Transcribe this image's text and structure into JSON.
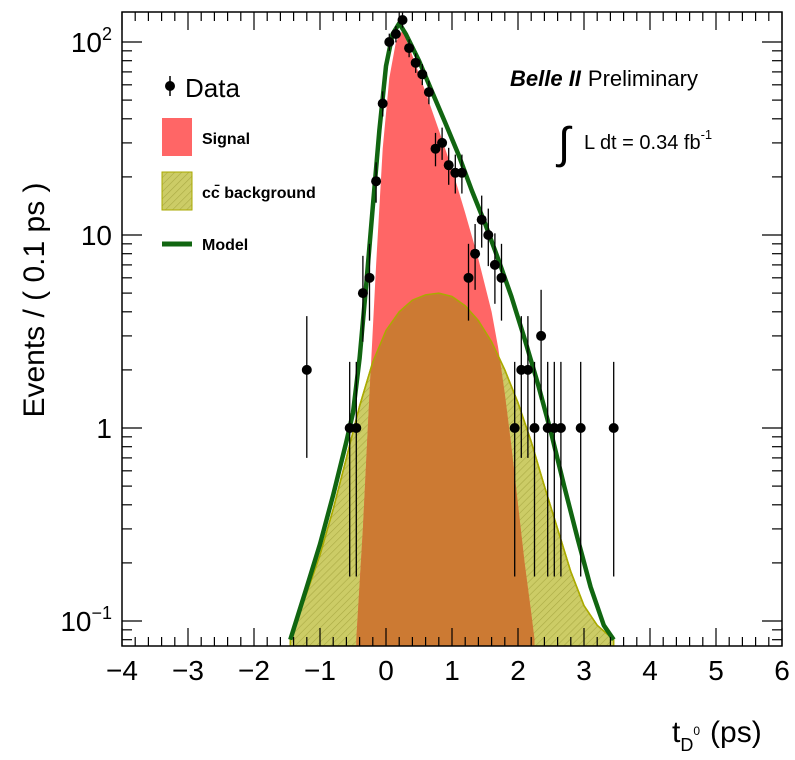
{
  "chart_data": {
    "type": "scatter",
    "title": "",
    "xlabel": "t",
    "xlabel_sub": "D",
    "xlabel_sup": "0",
    "xlabel_unit": "(ps)",
    "ylabel": "Events / ( 0.1 ps )",
    "x_scale": "linear",
    "y_scale": "log",
    "xlim": [
      -4,
      6
    ],
    "ylim": [
      0.08,
      160
    ],
    "grid": false,
    "legend_position": "top-left",
    "x_ticks": [
      "−4",
      "−3",
      "−2",
      "−1",
      "0",
      "1",
      "2",
      "3",
      "4",
      "5",
      "6"
    ],
    "x_tick_values": [
      -4,
      -3,
      -2,
      -1,
      0,
      1,
      2,
      3,
      4,
      5,
      6
    ],
    "y_ticks": [
      {
        "value": 100,
        "base": "10",
        "exp": "2"
      },
      {
        "value": 10,
        "base": "10",
        "exp": ""
      },
      {
        "value": 1,
        "base": "1",
        "exp": ""
      },
      {
        "value": 0.1,
        "base": "10",
        "exp": "−1"
      }
    ],
    "legend": {
      "data": "Data",
      "signal": "Signal",
      "background": "cc̄ background",
      "model": "Model"
    },
    "annotation": {
      "experiment": "Belle II",
      "status": "Preliminary",
      "lumi_integral": "∫",
      "lumi_text": "L dt = 0.34 fb",
      "lumi_exp": "-1"
    },
    "colors": {
      "signal": "#ff6666",
      "background_fill": "#cccc66",
      "background_line": "#aaaa00",
      "overlap": "#cc7a33",
      "model": "#116611",
      "data": "#000000"
    },
    "series": [
      {
        "name": "Data",
        "points": [
          {
            "x": -1.2,
            "y": 2,
            "yerr_low": 1.3,
            "yerr_high": 1.8
          },
          {
            "x": -0.55,
            "y": 1,
            "yerr_low": 0.83,
            "yerr_high": 1.2
          },
          {
            "x": -0.45,
            "y": 1,
            "yerr_low": 0.83,
            "yerr_high": 1.2
          },
          {
            "x": -0.35,
            "y": 5,
            "yerr_low": 2.2,
            "yerr_high": 2.8
          },
          {
            "x": -0.25,
            "y": 6,
            "yerr_low": 2.4,
            "yerr_high": 3.0
          },
          {
            "x": -0.15,
            "y": 19,
            "yerr_low": 4.3,
            "yerr_high": 4.8
          },
          {
            "x": -0.05,
            "y": 48,
            "yerr_low": 6.9,
            "yerr_high": 7.5
          },
          {
            "x": 0.05,
            "y": 100,
            "yerr_low": 10,
            "yerr_high": 10.5
          },
          {
            "x": 0.15,
            "y": 110,
            "yerr_low": 10.5,
            "yerr_high": 11
          },
          {
            "x": 0.25,
            "y": 130,
            "yerr_low": 11.4,
            "yerr_high": 12
          },
          {
            "x": 0.35,
            "y": 93,
            "yerr_low": 9.6,
            "yerr_high": 10.2
          },
          {
            "x": 0.45,
            "y": 78,
            "yerr_low": 8.8,
            "yerr_high": 9.4
          },
          {
            "x": 0.55,
            "y": 68,
            "yerr_low": 8.2,
            "yerr_high": 8.8
          },
          {
            "x": 0.65,
            "y": 55,
            "yerr_low": 7.4,
            "yerr_high": 8.0
          },
          {
            "x": 0.75,
            "y": 28,
            "yerr_low": 5.3,
            "yerr_high": 5.8
          },
          {
            "x": 0.85,
            "y": 30,
            "yerr_low": 5.5,
            "yerr_high": 6.0
          },
          {
            "x": 0.95,
            "y": 23,
            "yerr_low": 4.8,
            "yerr_high": 5.3
          },
          {
            "x": 1.05,
            "y": 21,
            "yerr_low": 4.6,
            "yerr_high": 5.1
          },
          {
            "x": 1.15,
            "y": 21,
            "yerr_low": 4.6,
            "yerr_high": 5.1
          },
          {
            "x": 1.25,
            "y": 6,
            "yerr_low": 2.4,
            "yerr_high": 3.0
          },
          {
            "x": 1.35,
            "y": 8,
            "yerr_low": 2.8,
            "yerr_high": 3.4
          },
          {
            "x": 1.45,
            "y": 12,
            "yerr_low": 3.4,
            "yerr_high": 4.0
          },
          {
            "x": 1.55,
            "y": 10,
            "yerr_low": 3.1,
            "yerr_high": 3.7
          },
          {
            "x": 1.65,
            "y": 7,
            "yerr_low": 2.6,
            "yerr_high": 3.2
          },
          {
            "x": 1.75,
            "y": 6,
            "yerr_low": 2.4,
            "yerr_high": 3.0
          },
          {
            "x": 1.95,
            "y": 1,
            "yerr_low": 0.83,
            "yerr_high": 1.2
          },
          {
            "x": 2.05,
            "y": 2,
            "yerr_low": 1.3,
            "yerr_high": 1.8
          },
          {
            "x": 2.15,
            "y": 2,
            "yerr_low": 1.3,
            "yerr_high": 1.8
          },
          {
            "x": 2.25,
            "y": 1,
            "yerr_low": 0.83,
            "yerr_high": 1.2
          },
          {
            "x": 2.35,
            "y": 3,
            "yerr_low": 1.6,
            "yerr_high": 2.2
          },
          {
            "x": 2.45,
            "y": 1,
            "yerr_low": 0.83,
            "yerr_high": 1.2
          },
          {
            "x": 2.55,
            "y": 1,
            "yerr_low": 0.83,
            "yerr_high": 1.2
          },
          {
            "x": 2.65,
            "y": 1,
            "yerr_low": 0.83,
            "yerr_high": 1.2
          },
          {
            "x": 2.95,
            "y": 1,
            "yerr_low": 0.83,
            "yerr_high": 1.2
          },
          {
            "x": 3.45,
            "y": 1,
            "yerr_low": 0.83,
            "yerr_high": 1.2
          }
        ]
      },
      {
        "name": "Model",
        "type": "line",
        "points": [
          [
            -1.45,
            0.08
          ],
          [
            -1.2,
            0.15
          ],
          [
            -1.0,
            0.25
          ],
          [
            -0.8,
            0.45
          ],
          [
            -0.6,
            0.85
          ],
          [
            -0.5,
            1.2
          ],
          [
            -0.4,
            2.3
          ],
          [
            -0.3,
            5.5
          ],
          [
            -0.2,
            14
          ],
          [
            -0.1,
            35
          ],
          [
            0.0,
            75
          ],
          [
            0.1,
            110
          ],
          [
            0.2,
            125
          ],
          [
            0.3,
            110
          ],
          [
            0.5,
            80
          ],
          [
            0.7,
            55
          ],
          [
            0.9,
            38
          ],
          [
            1.1,
            26
          ],
          [
            1.3,
            17
          ],
          [
            1.5,
            11.5
          ],
          [
            1.7,
            7.5
          ],
          [
            1.9,
            4.8
          ],
          [
            2.1,
            2.9
          ],
          [
            2.3,
            1.7
          ],
          [
            2.5,
            0.95
          ],
          [
            2.7,
            0.5
          ],
          [
            2.9,
            0.27
          ],
          [
            3.1,
            0.15
          ],
          [
            3.3,
            0.095
          ],
          [
            3.45,
            0.08
          ]
        ]
      },
      {
        "name": "Signal",
        "type": "area",
        "points": [
          [
            -0.45,
            0.08
          ],
          [
            -0.35,
            0.3
          ],
          [
            -0.25,
            1.5
          ],
          [
            -0.15,
            7
          ],
          [
            -0.05,
            28
          ],
          [
            0.05,
            65
          ],
          [
            0.15,
            100
          ],
          [
            0.25,
            115
          ],
          [
            0.4,
            85
          ],
          [
            0.6,
            55
          ],
          [
            0.8,
            35
          ],
          [
            1.0,
            22
          ],
          [
            1.2,
            13
          ],
          [
            1.4,
            7.5
          ],
          [
            1.6,
            4.0
          ],
          [
            1.7,
            2.6
          ],
          [
            1.8,
            1.5
          ],
          [
            1.9,
            0.8
          ],
          [
            2.0,
            0.4
          ],
          [
            2.1,
            0.2
          ],
          [
            2.2,
            0.11
          ],
          [
            2.25,
            0.08
          ]
        ]
      },
      {
        "name": "cc̄ background",
        "type": "area",
        "points": [
          [
            -1.45,
            0.08
          ],
          [
            -1.2,
            0.14
          ],
          [
            -1.0,
            0.22
          ],
          [
            -0.8,
            0.38
          ],
          [
            -0.6,
            0.7
          ],
          [
            -0.4,
            1.3
          ],
          [
            -0.2,
            2.2
          ],
          [
            0.0,
            3.2
          ],
          [
            0.2,
            4.0
          ],
          [
            0.4,
            4.6
          ],
          [
            0.6,
            4.9
          ],
          [
            0.8,
            5.0
          ],
          [
            1.0,
            4.8
          ],
          [
            1.2,
            4.3
          ],
          [
            1.4,
            3.6
          ],
          [
            1.6,
            2.8
          ],
          [
            1.8,
            2.0
          ],
          [
            2.0,
            1.35
          ],
          [
            2.2,
            0.85
          ],
          [
            2.4,
            0.5
          ],
          [
            2.6,
            0.3
          ],
          [
            2.8,
            0.18
          ],
          [
            3.0,
            0.12
          ],
          [
            3.2,
            0.095
          ],
          [
            3.45,
            0.08
          ]
        ]
      }
    ]
  }
}
